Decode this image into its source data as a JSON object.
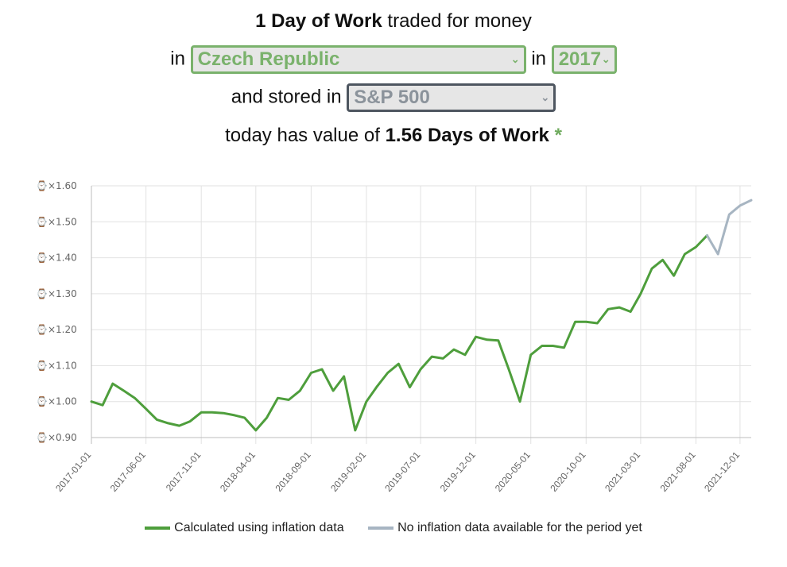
{
  "header": {
    "unit_bold": "1 Day of Work",
    "traded_text": "traded for money",
    "in_word": "in",
    "country": "Czech Republic",
    "in_word2": "in",
    "year": "2017",
    "stored_text": "and stored in",
    "fund": "S&P 500",
    "today_text": "today has value of",
    "result": "1.56 Days of Work",
    "asterisk": "*"
  },
  "colors": {
    "calculated": "#4e9e3c",
    "no_inflation": "#a7b5c2",
    "select_green": "#7ab26c",
    "select_gray": "#4e5660"
  },
  "chart_data": {
    "type": "line",
    "y_tick_prefix": "⌚×",
    "ylim": [
      0.9,
      1.6
    ],
    "y_ticks": [
      "1.60",
      "1.50",
      "1.40",
      "1.30",
      "1.20",
      "1.10",
      "1.00",
      "0.90"
    ],
    "x_ticks": [
      "2017-01-01",
      "2017-06-01",
      "2017-11-01",
      "2018-04-01",
      "2018-09-01",
      "2019-02-01",
      "2019-07-01",
      "2019-12-01",
      "2020-05-01",
      "2020-10-01",
      "2021-03-01",
      "2021-08-01",
      "2021-12-01"
    ],
    "legend": [
      "Calculated using inflation data",
      "No inflation data available for the period yet"
    ],
    "legend_position": "bottom",
    "grid": true,
    "series": [
      {
        "name": "Calculated using inflation data",
        "x": [
          "2017-01-01",
          "2017-02-01",
          "2017-03-01",
          "2017-04-01",
          "2017-05-01",
          "2017-06-01",
          "2017-07-01",
          "2017-08-01",
          "2017-09-01",
          "2017-10-01",
          "2017-11-01",
          "2017-12-01",
          "2018-01-01",
          "2018-02-01",
          "2018-03-01",
          "2018-04-01",
          "2018-05-01",
          "2018-06-01",
          "2018-07-01",
          "2018-08-01",
          "2018-09-01",
          "2018-10-01",
          "2018-11-01",
          "2018-12-01",
          "2019-01-01",
          "2019-02-01",
          "2019-03-01",
          "2019-04-01",
          "2019-05-01",
          "2019-06-01",
          "2019-07-01",
          "2019-08-01",
          "2019-09-01",
          "2019-10-01",
          "2019-11-01",
          "2019-12-01",
          "2020-01-01",
          "2020-02-01",
          "2020-03-01",
          "2020-04-01",
          "2020-05-01",
          "2020-06-01",
          "2020-07-01",
          "2020-08-01",
          "2020-09-01",
          "2020-10-01",
          "2020-11-01",
          "2020-12-01",
          "2021-01-01",
          "2021-02-01",
          "2021-03-01",
          "2021-04-01",
          "2021-05-01",
          "2021-06-01",
          "2021-07-01",
          "2021-08-01",
          "2021-09-01"
        ],
        "values": [
          1.0,
          0.99,
          1.05,
          1.03,
          1.01,
          0.98,
          0.95,
          0.94,
          0.933,
          0.945,
          0.97,
          0.97,
          0.968,
          0.962,
          0.955,
          0.92,
          0.955,
          1.01,
          1.005,
          1.03,
          1.08,
          1.09,
          1.03,
          1.07,
          0.92,
          1.0,
          1.04,
          1.08,
          1.105,
          1.04,
          1.09,
          1.125,
          1.12,
          1.145,
          1.13,
          1.18,
          1.172,
          1.17,
          1.09,
          1.0,
          1.13,
          1.155,
          1.155,
          1.15,
          1.222,
          1.222,
          1.218,
          1.257,
          1.262,
          1.25,
          1.3,
          1.37,
          1.394,
          1.35,
          1.41,
          1.43,
          1.462
        ]
      },
      {
        "name": "No inflation data available for the period yet",
        "x": [
          "2021-09-01",
          "2021-10-01",
          "2021-11-01",
          "2021-12-01",
          "2022-01-01"
        ],
        "values": [
          1.462,
          1.41,
          1.52,
          1.545,
          1.56
        ]
      }
    ]
  }
}
